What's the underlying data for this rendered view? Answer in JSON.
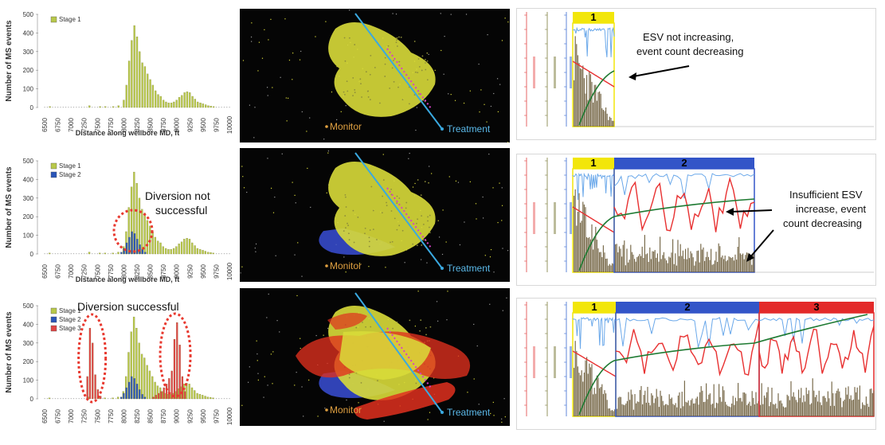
{
  "chart_data": [
    {
      "type": "bar",
      "xlabel": "Distance along wellbore MD, ft",
      "ylabel": "Number of MS events",
      "ylim": [
        0,
        500
      ],
      "yticks": [
        0,
        100,
        200,
        300,
        400,
        500
      ],
      "xlim": [
        6500,
        10000
      ],
      "xticks": [
        6500,
        6750,
        7000,
        7250,
        7500,
        7750,
        8000,
        8250,
        8500,
        8750,
        9000,
        9250,
        9500,
        9750,
        10000
      ],
      "legend_position": "top-left",
      "series": [
        {
          "name": "Stage 1",
          "color": "#b8c84a",
          "x": [
            6600,
            7350,
            7550,
            7650,
            7800,
            7900,
            8000,
            8050,
            8100,
            8150,
            8200,
            8250,
            8300,
            8350,
            8400,
            8450,
            8500,
            8550,
            8600,
            8650,
            8700,
            8750,
            8800,
            8850,
            8900,
            8950,
            9000,
            9050,
            9100,
            9150,
            9200,
            9250,
            9300,
            9350,
            9400,
            9450,
            9500,
            9550,
            9600,
            9650,
            9700
          ],
          "values": [
            5,
            10,
            5,
            5,
            5,
            10,
            40,
            120,
            250,
            360,
            440,
            380,
            300,
            240,
            220,
            180,
            150,
            120,
            90,
            70,
            60,
            40,
            30,
            25,
            25,
            30,
            40,
            55,
            65,
            80,
            85,
            80,
            60,
            45,
            30,
            25,
            20,
            15,
            10,
            8,
            5
          ]
        }
      ],
      "annotations": []
    },
    {
      "type": "bar",
      "xlabel": "Distance along wellbore MD, ft",
      "ylabel": "Number of MS events",
      "ylim": [
        0,
        500
      ],
      "yticks": [
        0,
        100,
        200,
        300,
        400,
        500
      ],
      "xlim": [
        6500,
        10000
      ],
      "xticks": [
        6500,
        6750,
        7000,
        7250,
        7500,
        7750,
        8000,
        8250,
        8500,
        8750,
        9000,
        9250,
        9500,
        9750,
        10000
      ],
      "legend_position": "top-left",
      "series": [
        {
          "name": "Stage 1",
          "color": "#b8c84a",
          "x": [
            6600,
            7350,
            7550,
            7650,
            7800,
            7900,
            8000,
            8050,
            8100,
            8150,
            8200,
            8250,
            8300,
            8350,
            8400,
            8450,
            8500,
            8550,
            8600,
            8650,
            8700,
            8750,
            8800,
            8850,
            8900,
            8950,
            9000,
            9050,
            9100,
            9150,
            9200,
            9250,
            9300,
            9350,
            9400,
            9450,
            9500,
            9550,
            9600,
            9650,
            9700
          ],
          "values": [
            5,
            10,
            5,
            5,
            5,
            10,
            40,
            120,
            250,
            360,
            440,
            380,
            300,
            240,
            220,
            180,
            150,
            120,
            90,
            70,
            60,
            40,
            30,
            25,
            25,
            30,
            40,
            55,
            65,
            80,
            85,
            80,
            60,
            45,
            30,
            25,
            20,
            15,
            10,
            8,
            5
          ]
        },
        {
          "name": "Stage 2",
          "color": "#2a55b8",
          "x": [
            7950,
            8000,
            8050,
            8100,
            8150,
            8200,
            8250,
            8300,
            8350,
            8400
          ],
          "values": [
            10,
            30,
            60,
            90,
            120,
            110,
            80,
            50,
            25,
            10
          ]
        }
      ],
      "annotations": [
        "Diversion not",
        "successful"
      ]
    },
    {
      "type": "bar",
      "xlabel": "",
      "ylabel": "Number of MS events",
      "ylim": [
        0,
        500
      ],
      "yticks": [
        0,
        100,
        200,
        300,
        400,
        500
      ],
      "xlim": [
        6500,
        10000
      ],
      "xticks": [
        6500,
        6750,
        7000,
        7250,
        7500,
        7750,
        8000,
        8250,
        8500,
        8750,
        9000,
        9250,
        9500,
        9750,
        10000
      ],
      "legend_position": "top-left",
      "series": [
        {
          "name": "Stage 1",
          "color": "#b8c84a",
          "x": [
            6600,
            7350,
            7550,
            7650,
            7800,
            7900,
            8000,
            8050,
            8100,
            8150,
            8200,
            8250,
            8300,
            8350,
            8400,
            8450,
            8500,
            8550,
            8600,
            8650,
            8700,
            8750,
            8800,
            8850,
            8900,
            8950,
            9000,
            9050,
            9100,
            9150,
            9200,
            9250,
            9300,
            9350,
            9400,
            9450,
            9500,
            9550,
            9600,
            9650,
            9700
          ],
          "values": [
            5,
            10,
            5,
            5,
            5,
            10,
            40,
            120,
            250,
            360,
            440,
            380,
            300,
            240,
            220,
            180,
            150,
            120,
            90,
            70,
            60,
            40,
            30,
            25,
            25,
            30,
            40,
            55,
            65,
            80,
            85,
            80,
            60,
            45,
            30,
            25,
            20,
            15,
            10,
            8,
            5
          ]
        },
        {
          "name": "Stage 2",
          "color": "#2a55b8",
          "x": [
            7950,
            8000,
            8050,
            8100,
            8150,
            8200,
            8250,
            8300,
            8350,
            8400
          ],
          "values": [
            10,
            30,
            60,
            90,
            120,
            110,
            80,
            50,
            25,
            10
          ]
        },
        {
          "name": "Stage 3",
          "color": "#e04545",
          "x": [
            7300,
            7350,
            7400,
            7450,
            7500,
            7550,
            8550,
            8600,
            8650,
            8700,
            8750,
            8800,
            8850,
            8900,
            8950,
            9000,
            9050,
            9100,
            9150
          ],
          "values": [
            120,
            380,
            300,
            130,
            50,
            15,
            10,
            20,
            30,
            40,
            60,
            80,
            110,
            150,
            320,
            410,
            290,
            120,
            40
          ]
        }
      ],
      "annotations": [
        "Diversion  successful"
      ]
    }
  ],
  "maps": [
    {
      "labels": {
        "monitor": "Monitor",
        "treatment": "Treatment"
      },
      "stages": [
        "yellow"
      ]
    },
    {
      "labels": {
        "monitor": "Monitor",
        "treatment": "Treatment"
      },
      "stages": [
        "yellow",
        "blue"
      ]
    },
    {
      "labels": {
        "monitor": "Monitor",
        "treatment": "Treatment"
      },
      "stages": [
        "yellow",
        "blue",
        "red"
      ]
    }
  ],
  "timeseries": [
    {
      "stages": [
        {
          "label": "1",
          "color": "#f2e60a"
        }
      ],
      "annotation": [
        "ESV not increasing,",
        "event count decreasing"
      ]
    },
    {
      "stages": [
        {
          "label": "1",
          "color": "#f2e60a"
        },
        {
          "label": "2",
          "color": "#3355c8"
        }
      ],
      "annotation": [
        "Insufficient ESV",
        "increase, event",
        "count decreasing"
      ]
    },
    {
      "stages": [
        {
          "label": "1",
          "color": "#f2e60a"
        },
        {
          "label": "2",
          "color": "#3355c8"
        },
        {
          "label": "3",
          "color": "#e32a2a"
        }
      ],
      "annotation": []
    }
  ]
}
